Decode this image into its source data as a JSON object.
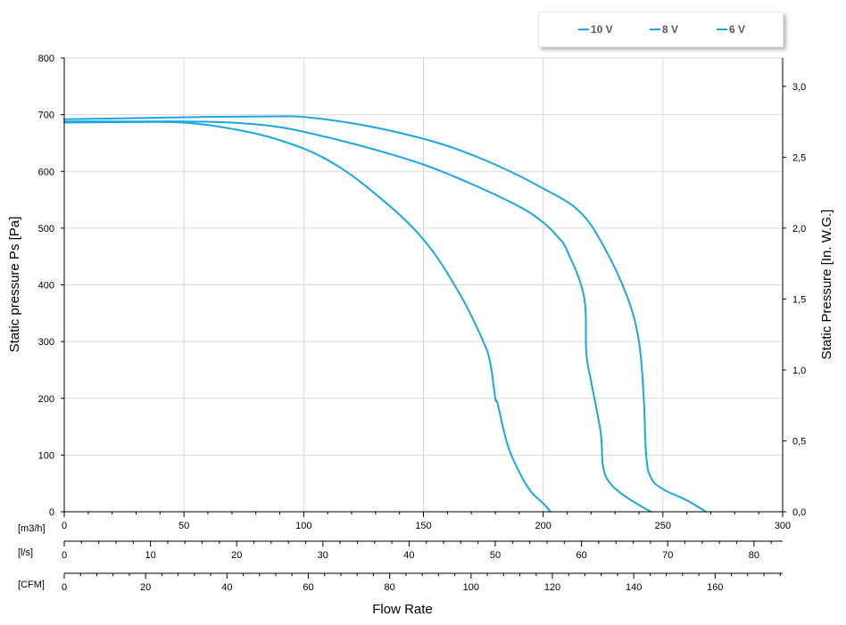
{
  "chart_data": {
    "type": "line",
    "ylabel": "Static pressure Ps [Pa]",
    "y2label": "Static Pressure [In. W.G.]",
    "xlabel": "Flow Rate",
    "ylim": [
      0,
      800
    ],
    "yticks": [
      0,
      100,
      200,
      300,
      400,
      500,
      600,
      700,
      800
    ],
    "y2lim": [
      0,
      3.2
    ],
    "y2ticks": [
      "0,0",
      "0,5",
      "1,0",
      "1,5",
      "2,0",
      "2,5",
      "3,0"
    ],
    "y2values": [
      0,
      0.5,
      1.0,
      1.5,
      2.0,
      2.5,
      3.0
    ],
    "grid": true,
    "legend_position": "top-right",
    "x_axes": [
      {
        "unit": "[m3/h]",
        "range": [
          0,
          300
        ],
        "ticks": [
          0,
          50,
          100,
          150,
          200,
          250,
          300
        ],
        "minor_step": 10
      },
      {
        "unit": "[l/s]",
        "range": [
          0,
          83.33
        ],
        "ticks": [
          0,
          10,
          20,
          30,
          40,
          50,
          60,
          70,
          80
        ],
        "minor_step": 2
      },
      {
        "unit": "[CFM]",
        "range": [
          0,
          176.6
        ],
        "ticks": [
          0,
          20,
          40,
          60,
          80,
          100,
          120,
          140,
          160
        ],
        "minor_step": 4
      }
    ],
    "series": [
      {
        "name": "10 V",
        "color": "#1aa7e0",
        "x": [
          0,
          30,
          60,
          90,
          100,
          120,
          140,
          160,
          180,
          200,
          215,
          225,
          235,
          240,
          242,
          243,
          245,
          250,
          260,
          268
        ],
        "y": [
          692,
          694,
          696,
          697,
          696,
          685,
          668,
          645,
          612,
          570,
          530,
          470,
          380,
          300,
          200,
          100,
          60,
          40,
          20,
          0
        ]
      },
      {
        "name": "8 V",
        "color": "#1aa7e0",
        "x": [
          0,
          30,
          50,
          70,
          90,
          110,
          130,
          150,
          170,
          190,
          200,
          206,
          210,
          217,
          218,
          220,
          224,
          225,
          228,
          235,
          245
        ],
        "y": [
          688,
          688,
          688,
          686,
          678,
          660,
          638,
          612,
          578,
          538,
          510,
          485,
          460,
          380,
          280,
          230,
          140,
          80,
          50,
          25,
          0
        ]
      },
      {
        "name": "6 V",
        "color": "#1aa7e0",
        "x": [
          0,
          30,
          50,
          70,
          90,
          110,
          130,
          150,
          165,
          175,
          178,
          180,
          181,
          185,
          190,
          195,
          200,
          203
        ],
        "y": [
          686,
          687,
          686,
          675,
          655,
          620,
          560,
          480,
          385,
          300,
          260,
          200,
          190,
          120,
          70,
          35,
          15,
          0
        ]
      }
    ]
  }
}
